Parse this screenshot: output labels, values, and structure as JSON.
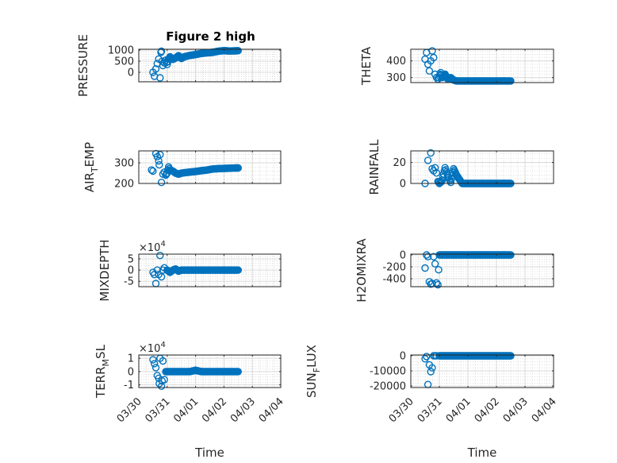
{
  "figure": {
    "title": "Figure 2 high",
    "xlabel": "Time",
    "marker_color": "#0072BD",
    "axes_color": "#262626",
    "grid_color": "#D9D9D9"
  },
  "chart_data": [
    {
      "id": "pressure",
      "type": "scatter",
      "title": "Figure 2 high",
      "xlabel": "",
      "ylabel": "PRESSURE",
      "ylabel_sub": "",
      "exponent": "",
      "xlim": [
        "03/30",
        "04/04"
      ],
      "ylim": [
        -430,
        1040
      ],
      "yticks": [
        0,
        500,
        1000
      ],
      "ytick_labels": [
        "0",
        "500",
        "1000"
      ],
      "xtick_labels": [],
      "grid": true,
      "series": [
        {
          "name": "PRESSURE",
          "x_days": [
            0.5,
            0.55,
            0.6,
            0.65,
            0.7,
            0.75,
            0.78,
            0.8,
            0.82,
            0.85,
            0.9,
            0.95,
            1.0,
            1.05,
            1.1,
            1.2,
            1.3,
            1.4,
            1.5,
            1.6,
            1.8,
            2.0,
            2.2,
            2.4,
            2.6,
            2.8,
            3.0,
            3.2,
            3.4,
            3.5
          ],
          "y": [
            0,
            -180,
            150,
            400,
            600,
            -250,
            900,
            950,
            500,
            300,
            420,
            550,
            350,
            600,
            700,
            580,
            650,
            750,
            620,
            700,
            760,
            800,
            850,
            880,
            900,
            950,
            980,
            960,
            970,
            975
          ]
        }
      ]
    },
    {
      "id": "theta",
      "type": "scatter",
      "title": "",
      "xlabel": "",
      "ylabel": "THETA",
      "ylabel_sub": "",
      "exponent": "",
      "xlim": [
        "03/30",
        "04/04"
      ],
      "ylim": [
        270,
        470
      ],
      "yticks": [
        300,
        400
      ],
      "ytick_labels": [
        "300",
        "400"
      ],
      "xtick_labels": [],
      "grid": true,
      "series": [
        {
          "name": "THETA",
          "x_days": [
            0.5,
            0.55,
            0.6,
            0.65,
            0.7,
            0.75,
            0.8,
            0.85,
            0.9,
            0.95,
            1.0,
            1.05,
            1.1,
            1.2,
            1.3,
            1.4,
            1.5,
            1.6,
            1.8,
            2.0,
            2.2,
            2.4,
            2.6,
            2.8,
            3.0,
            3.2,
            3.4,
            3.5
          ],
          "y": [
            410,
            450,
            380,
            340,
            400,
            460,
            420,
            320,
            300,
            290,
            310,
            330,
            300,
            320,
            290,
            300,
            285,
            280,
            280,
            280,
            280,
            280,
            280,
            280,
            280,
            280,
            280,
            280
          ]
        }
      ]
    },
    {
      "id": "air_temp",
      "type": "scatter",
      "title": "",
      "xlabel": "",
      "ylabel": "AIR",
      "ylabel_sub": "T",
      "ylabel_rest": "EMP",
      "exponent": "",
      "xlim": [
        "03/30",
        "04/04"
      ],
      "ylim": [
        200,
        358
      ],
      "yticks": [
        200,
        300
      ],
      "ytick_labels": [
        "200",
        "300"
      ],
      "xtick_labels": [],
      "grid": true,
      "series": [
        {
          "name": "AIR_TEMP",
          "x_days": [
            0.45,
            0.5,
            0.6,
            0.65,
            0.7,
            0.72,
            0.75,
            0.8,
            0.85,
            0.9,
            0.95,
            1.0,
            1.05,
            1.1,
            1.2,
            1.3,
            1.4,
            1.5,
            1.6,
            1.8,
            2.0,
            2.2,
            2.4,
            2.6,
            2.8,
            3.0,
            3.2,
            3.4,
            3.5
          ],
          "y": [
            265,
            260,
            345,
            330,
            310,
            290,
            340,
            205,
            245,
            255,
            240,
            250,
            280,
            265,
            260,
            250,
            245,
            250,
            252,
            255,
            258,
            262,
            265,
            270,
            272,
            273,
            274,
            275,
            275
          ]
        }
      ]
    },
    {
      "id": "rainfall",
      "type": "scatter",
      "title": "",
      "xlabel": "",
      "ylabel": "RAINFALL",
      "ylabel_sub": "",
      "exponent": "",
      "xlim": [
        "03/30",
        "04/04"
      ],
      "ylim": [
        0,
        31
      ],
      "yticks": [
        0,
        20
      ],
      "ytick_labels": [
        "0",
        "20"
      ],
      "xtick_labels": [],
      "grid": true,
      "series": [
        {
          "name": "RAINFALL",
          "x_days": [
            0.5,
            0.6,
            0.7,
            0.75,
            0.8,
            0.85,
            0.9,
            0.95,
            1.0,
            1.05,
            1.1,
            1.2,
            1.3,
            1.4,
            1.5,
            1.6,
            1.8,
            2.0,
            2.2,
            2.4,
            2.6,
            2.8,
            3.0,
            3.2,
            3.4,
            3.5
          ],
          "y": [
            0,
            22,
            29,
            14,
            12,
            15,
            10,
            2,
            0,
            1,
            3,
            15,
            7,
            1,
            14,
            8,
            0,
            0,
            0,
            0,
            0,
            0,
            0,
            0,
            0,
            0
          ]
        }
      ]
    },
    {
      "id": "mixdepth",
      "type": "scatter",
      "title": "",
      "xlabel": "",
      "ylabel": "MIXDEPTH",
      "ylabel_sub": "",
      "exponent": "×10^4",
      "exponent_base": "×10",
      "exponent_power": "4",
      "xlim": [
        "03/30",
        "04/04"
      ],
      "ylim": [
        -7.4,
        7.1
      ],
      "yticks": [
        -5,
        0,
        5
      ],
      "ytick_labels": [
        "-5",
        "0",
        "5"
      ],
      "xtick_labels": [],
      "grid": true,
      "series": [
        {
          "name": "MIXDEPTH",
          "x_days": [
            0.5,
            0.55,
            0.6,
            0.65,
            0.7,
            0.75,
            0.8,
            0.85,
            0.9,
            1.0,
            1.1,
            1.2,
            1.3,
            1.4,
            1.5,
            1.6,
            1.8,
            2.0,
            2.2,
            2.4,
            2.6,
            2.8,
            3.0,
            3.2,
            3.4,
            3.5
          ],
          "y": [
            -1,
            -2,
            -6,
            0,
            -2,
            6.5,
            -3,
            0,
            1,
            0,
            -1,
            0,
            0.5,
            -0.5,
            0,
            0,
            0,
            0,
            0,
            0,
            0,
            0,
            0,
            0,
            0,
            0
          ]
        }
      ]
    },
    {
      "id": "h2omixra",
      "type": "scatter",
      "title": "",
      "xlabel": "",
      "ylabel": "H2OMIXRA",
      "ylabel_sub": "",
      "exponent": "",
      "xlim": [
        "03/30",
        "04/04"
      ],
      "ylim": [
        -533,
        13
      ],
      "yticks": [
        -400,
        -200,
        0
      ],
      "ytick_labels": [
        "-400",
        "-200",
        "0"
      ],
      "xtick_labels": [],
      "grid": true,
      "series": [
        {
          "name": "H2OMIXRA",
          "x_days": [
            0.5,
            0.55,
            0.6,
            0.65,
            0.7,
            0.75,
            0.8,
            0.85,
            0.9,
            0.95,
            1.0,
            1.2,
            1.4,
            1.6,
            1.8,
            2.0,
            2.2,
            2.4,
            2.6,
            2.8,
            3.0,
            3.2,
            3.4,
            3.5
          ],
          "y": [
            -220,
            0,
            -30,
            -450,
            -490,
            -480,
            -30,
            -150,
            -470,
            -500,
            0,
            0,
            0,
            0,
            0,
            0,
            0,
            0,
            0,
            0,
            0,
            0,
            0,
            0
          ]
        }
      ]
    },
    {
      "id": "terr_msl",
      "type": "scatter",
      "title": "",
      "xlabel": "Time",
      "ylabel": "TERR",
      "ylabel_sub": "M",
      "ylabel_rest": "SL",
      "exponent": "×10^4",
      "exponent_base": "×10",
      "exponent_power": "4",
      "xlim": [
        "03/30",
        "04/04"
      ],
      "ylim": [
        -1.2,
        1.25
      ],
      "yticks": [
        -1,
        0,
        1
      ],
      "ytick_labels": [
        "-1",
        "0",
        "1"
      ],
      "xtick_labels": [
        "03/30",
        "03/31",
        "04/01",
        "04/02",
        "04/03",
        "04/04"
      ],
      "grid": true,
      "series": [
        {
          "name": "TERR_MSL",
          "x_days": [
            0.5,
            0.55,
            0.6,
            0.65,
            0.7,
            0.72,
            0.75,
            0.8,
            0.82,
            0.85,
            0.9,
            0.95,
            1.0,
            1.2,
            1.4,
            1.6,
            1.8,
            2.0,
            2.2,
            2.4,
            2.6,
            2.8,
            3.0,
            3.2,
            3.4,
            3.5
          ],
          "y": [
            0.9,
            0.6,
            0.3,
            -0.3,
            -0.5,
            -0.9,
            1.0,
            -1.1,
            -0.7,
            0.8,
            -0.6,
            0,
            0,
            0,
            0,
            0,
            0,
            0.1,
            0,
            0,
            0,
            0,
            0,
            0,
            0,
            0
          ]
        }
      ]
    },
    {
      "id": "sun_flux",
      "type": "scatter",
      "title": "",
      "xlabel": "Time",
      "ylabel": "SUN",
      "ylabel_sub": "F",
      "ylabel_rest": "LUX",
      "exponent": "",
      "xlim": [
        "03/30",
        "04/04"
      ],
      "ylim": [
        -21000,
        500
      ],
      "yticks": [
        -20000,
        -10000,
        0
      ],
      "ytick_labels": [
        "-20000",
        "-10000",
        "0"
      ],
      "xtick_labels": [
        "03/30",
        "03/31",
        "04/01",
        "04/02",
        "04/03",
        "04/04"
      ],
      "grid": true,
      "series": [
        {
          "name": "SUN_FLUX",
          "x_days": [
            0.5,
            0.55,
            0.6,
            0.65,
            0.7,
            0.75,
            0.8,
            0.85,
            0.9,
            1.0,
            1.2,
            1.4,
            1.6,
            1.8,
            2.0,
            2.2,
            2.4,
            2.6,
            2.8,
            3.0,
            3.2,
            3.4,
            3.5
          ],
          "y": [
            -2000,
            -500,
            -19000,
            -6000,
            -10500,
            -8000,
            0,
            0,
            0,
            0,
            0,
            0,
            0,
            0,
            0,
            0,
            0,
            0,
            0,
            0,
            0,
            0,
            0
          ]
        }
      ]
    }
  ]
}
